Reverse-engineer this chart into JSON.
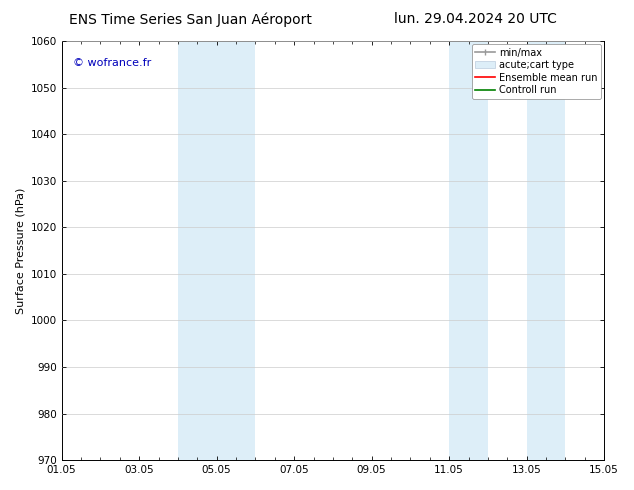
{
  "title_left": "ENS Time Series San Juan Aéroport",
  "title_right": "lun. 29.04.2024 20 UTC",
  "ylabel": "Surface Pressure (hPa)",
  "ylim": [
    970,
    1060
  ],
  "yticks": [
    970,
    980,
    990,
    1000,
    1010,
    1020,
    1030,
    1040,
    1050,
    1060
  ],
  "xtick_labels": [
    "01.05",
    "03.05",
    "05.05",
    "07.05",
    "09.05",
    "11.05",
    "13.05",
    "15.05"
  ],
  "xtick_positions": [
    0,
    2,
    4,
    6,
    8,
    10,
    12,
    14
  ],
  "shaded_bands": [
    {
      "x_start": 3.0,
      "x_end": 4.0,
      "color": "#ddeef8"
    },
    {
      "x_start": 4.0,
      "x_end": 5.0,
      "color": "#ddeef8"
    },
    {
      "x_start": 10.0,
      "x_end": 11.0,
      "color": "#ddeef8"
    },
    {
      "x_start": 12.0,
      "x_end": 13.0,
      "color": "#ddeef8"
    }
  ],
  "watermark_text": "© wofrance.fr",
  "watermark_color": "#0000bb",
  "legend_entries": [
    {
      "label": "min/max",
      "color": "#999999"
    },
    {
      "label": "acute;cart type",
      "color": "#ddeef8"
    },
    {
      "label": "Ensemble mean run",
      "color": "#ff0000"
    },
    {
      "label": "Controll run",
      "color": "#008000"
    }
  ],
  "bg_color": "#ffffff",
  "plot_bg_color": "#ffffff",
  "grid_color": "#cccccc",
  "title_fontsize": 10,
  "ylabel_fontsize": 8,
  "tick_fontsize": 7.5,
  "legend_fontsize": 7,
  "watermark_fontsize": 8
}
